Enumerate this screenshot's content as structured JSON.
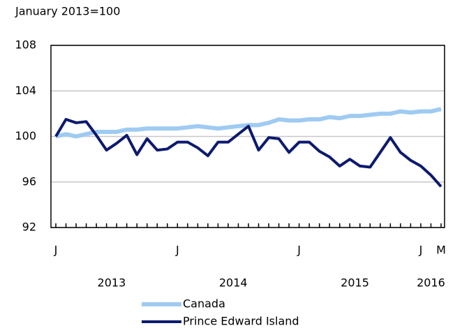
{
  "chart_data": {
    "type": "line",
    "subtitle": "January 2013=100",
    "categories": [
      "J",
      null,
      null,
      null,
      null,
      null,
      null,
      null,
      null,
      null,
      null,
      null,
      "J",
      null,
      null,
      null,
      null,
      null,
      null,
      null,
      null,
      null,
      null,
      null,
      "J",
      null,
      null,
      null,
      null,
      null,
      null,
      null,
      null,
      null,
      null,
      null,
      "J",
      null,
      "M"
    ],
    "years": [
      "2013",
      "2014",
      "2015",
      "2016"
    ],
    "series": [
      {
        "name": "Canada",
        "color": "#9fcbf2",
        "values": [
          100.0,
          100.2,
          100.0,
          100.2,
          100.4,
          100.4,
          100.4,
          100.6,
          100.6,
          100.7,
          100.7,
          100.7,
          100.7,
          100.8,
          100.9,
          100.8,
          100.7,
          100.8,
          100.9,
          101.0,
          101.0,
          101.2,
          101.5,
          101.4,
          101.4,
          101.5,
          101.5,
          101.7,
          101.6,
          101.8,
          101.8,
          101.9,
          102.0,
          102.0,
          102.2,
          102.1,
          102.2,
          102.2,
          102.4
        ]
      },
      {
        "name": "Prince Edward Island",
        "color": "#0c1a6e",
        "values": [
          100.0,
          101.5,
          101.2,
          101.3,
          100.1,
          98.8,
          99.4,
          100.1,
          98.4,
          99.8,
          98.8,
          98.9,
          99.5,
          99.5,
          99.0,
          98.3,
          99.5,
          99.5,
          100.2,
          100.9,
          98.8,
          99.9,
          99.8,
          98.6,
          99.5,
          99.5,
          98.7,
          98.2,
          97.4,
          98.0,
          97.4,
          97.3,
          98.6,
          99.9,
          98.6,
          97.9,
          97.4,
          96.6,
          95.6
        ]
      }
    ],
    "ylim": [
      92,
      108
    ],
    "yticks": [
      92,
      96,
      100,
      104,
      108
    ],
    "grid": true
  }
}
